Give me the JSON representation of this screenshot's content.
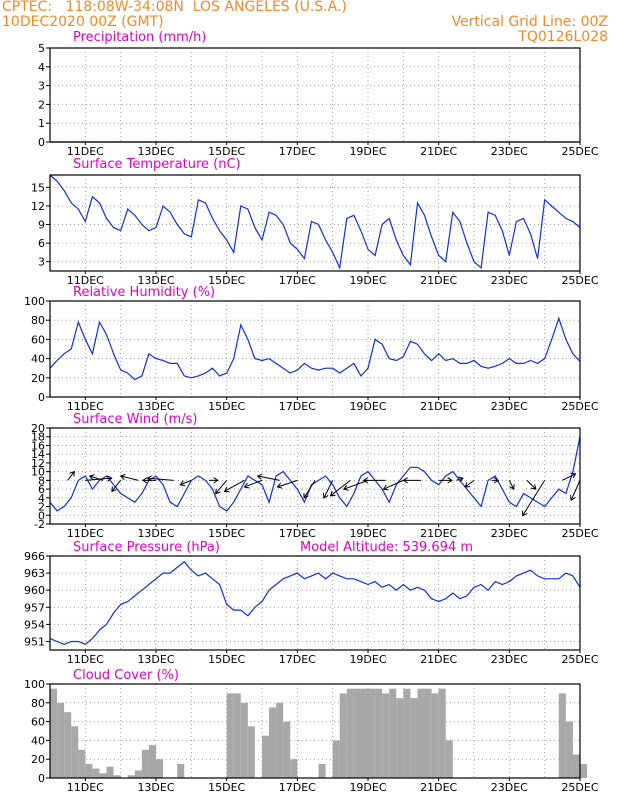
{
  "header": {
    "line1_left": "CPTEC:   118:08W-34:08N  LOS ANGELES (U.S.A.)",
    "line2_left": "10DEC2020 00Z (GMT)",
    "line1_right": "Vertical Grid Line: 00Z",
    "line2_right": "TQ0126L028"
  },
  "colors": {
    "header": "#f08a28",
    "panel_title": "#e000c8",
    "line": "#1030e0",
    "bar": "#a8a8a8",
    "arrow": "#000000"
  },
  "chart_data": [
    {
      "type": "line",
      "title": "Precipitation (mm/h)",
      "ylim": [
        0,
        5
      ],
      "yticks": [
        0,
        1,
        2,
        3,
        4,
        5
      ],
      "xticks": [
        "11DEC",
        "13DEC",
        "15DEC",
        "17DEC",
        "19DEC",
        "21DEC",
        "23DEC",
        "25DEC"
      ],
      "series": [
        {
          "x": [
            0,
            15
          ],
          "values": [
            0,
            0
          ]
        }
      ]
    },
    {
      "type": "line",
      "title": "Surface Temperature (nC)",
      "ylim": [
        1.5,
        17
      ],
      "yticks": [
        3,
        6,
        9,
        12,
        15
      ],
      "xticks": [
        "11DEC",
        "13DEC",
        "15DEC",
        "17DEC",
        "19DEC",
        "21DEC",
        "23DEC",
        "25DEC"
      ],
      "series": [
        {
          "x": [
            0,
            0.2,
            0.4,
            0.6,
            0.8,
            1.0,
            1.2,
            1.4,
            1.6,
            1.8,
            2.0,
            2.2,
            2.4,
            2.6,
            2.8,
            3.0,
            3.2,
            3.4,
            3.6,
            3.8,
            4.0,
            4.2,
            4.4,
            4.6,
            4.8,
            5.0,
            5.2,
            5.4,
            5.6,
            5.8,
            6.0,
            6.2,
            6.4,
            6.6,
            6.8,
            7.0,
            7.2,
            7.4,
            7.6,
            7.8,
            8.0,
            8.2,
            8.4,
            8.6,
            8.8,
            9.0,
            9.2,
            9.4,
            9.6,
            9.8,
            10.0,
            10.2,
            10.4,
            10.6,
            10.8,
            11.0,
            11.2,
            11.4,
            11.6,
            11.8,
            12.0,
            12.2,
            12.4,
            12.6,
            12.8,
            13.0,
            13.2,
            13.4,
            13.6,
            13.8,
            14.0,
            14.2,
            14.4,
            14.6,
            14.8,
            15.0
          ],
          "values": [
            17,
            16,
            14.5,
            12.5,
            11.5,
            9.5,
            13.5,
            12.5,
            10,
            8.5,
            8,
            11.5,
            10.5,
            9,
            8,
            8.5,
            12,
            11,
            9,
            7.5,
            7,
            13,
            12.5,
            10,
            8,
            6.5,
            4.5,
            12,
            11.5,
            8.5,
            6.5,
            11,
            10.5,
            9,
            6,
            5,
            3.5,
            9.5,
            9,
            6.5,
            4.5,
            2,
            10,
            10.5,
            8,
            5,
            4,
            9,
            10,
            6.5,
            4,
            2.5,
            12.5,
            10.5,
            7,
            4,
            3,
            11,
            9.5,
            6,
            3,
            2,
            11,
            10.5,
            8,
            4,
            9.5,
            10,
            7.5,
            3.5,
            13,
            12,
            11,
            10,
            9.5,
            8.5
          ]
        }
      ]
    },
    {
      "type": "line",
      "title": "Relative Humidity (%)",
      "ylim": [
        0,
        100
      ],
      "yticks": [
        0,
        20,
        40,
        60,
        80,
        100
      ],
      "xticks": [
        "11DEC",
        "13DEC",
        "15DEC",
        "17DEC",
        "19DEC",
        "21DEC",
        "23DEC",
        "25DEC"
      ],
      "series": [
        {
          "x": [
            0,
            0.2,
            0.4,
            0.6,
            0.8,
            1.0,
            1.2,
            1.4,
            1.6,
            1.8,
            2.0,
            2.2,
            2.4,
            2.6,
            2.8,
            3.0,
            3.2,
            3.4,
            3.6,
            3.8,
            4.0,
            4.2,
            4.4,
            4.6,
            4.8,
            5.0,
            5.2,
            5.4,
            5.6,
            5.8,
            6.0,
            6.2,
            6.4,
            6.6,
            6.8,
            7.0,
            7.2,
            7.4,
            7.6,
            7.8,
            8.0,
            8.2,
            8.4,
            8.6,
            8.8,
            9.0,
            9.2,
            9.4,
            9.6,
            9.8,
            10.0,
            10.2,
            10.4,
            10.6,
            10.8,
            11.0,
            11.2,
            11.4,
            11.6,
            11.8,
            12.0,
            12.2,
            12.4,
            12.6,
            12.8,
            13.0,
            13.2,
            13.4,
            13.6,
            13.8,
            14.0,
            14.2,
            14.4,
            14.6,
            14.8,
            15.0
          ],
          "values": [
            30,
            38,
            45,
            50,
            78,
            60,
            45,
            78,
            65,
            45,
            28,
            25,
            18,
            22,
            45,
            40,
            38,
            35,
            35,
            22,
            20,
            22,
            25,
            30,
            22,
            25,
            40,
            75,
            60,
            40,
            38,
            40,
            35,
            30,
            25,
            28,
            35,
            30,
            28,
            30,
            30,
            25,
            30,
            35,
            22,
            30,
            60,
            55,
            40,
            38,
            42,
            58,
            55,
            45,
            38,
            45,
            38,
            40,
            35,
            35,
            38,
            32,
            30,
            32,
            35,
            40,
            35,
            35,
            38,
            35,
            40,
            60,
            82,
            60,
            45,
            37
          ]
        }
      ]
    },
    {
      "type": "line",
      "title": "Surface Wind (m/s)",
      "ylim": [
        -2,
        20
      ],
      "yticks": [
        -2,
        0,
        2,
        4,
        6,
        8,
        10,
        12,
        14,
        16,
        18,
        20
      ],
      "xticks": [
        "11DEC",
        "13DEC",
        "15DEC",
        "17DEC",
        "19DEC",
        "21DEC",
        "23DEC",
        "25DEC"
      ],
      "series": [
        {
          "x": [
            0,
            0.2,
            0.4,
            0.6,
            0.8,
            1.0,
            1.2,
            1.4,
            1.6,
            1.8,
            2.0,
            2.2,
            2.4,
            2.6,
            2.8,
            3.0,
            3.2,
            3.4,
            3.6,
            3.8,
            4.0,
            4.2,
            4.4,
            4.6,
            4.8,
            5.0,
            5.2,
            5.4,
            5.6,
            5.8,
            6.0,
            6.2,
            6.4,
            6.6,
            6.8,
            7.0,
            7.2,
            7.4,
            7.6,
            7.8,
            8.0,
            8.2,
            8.4,
            8.6,
            8.8,
            9.0,
            9.2,
            9.4,
            9.6,
            9.8,
            10.0,
            10.2,
            10.4,
            10.6,
            10.8,
            11.0,
            11.2,
            11.4,
            11.6,
            11.8,
            12.0,
            12.2,
            12.4,
            12.6,
            12.8,
            13.0,
            13.2,
            13.4,
            13.6,
            13.8,
            14.0,
            14.2,
            14.4,
            14.6,
            14.8,
            15.0
          ],
          "values": [
            3,
            1,
            2,
            4,
            8,
            9,
            6,
            8,
            9,
            7,
            5,
            4,
            3,
            5,
            8,
            9,
            7,
            3,
            2,
            5,
            8,
            9,
            8,
            6,
            2,
            1,
            3,
            6,
            9,
            8,
            7,
            3,
            9,
            10,
            8,
            6,
            3,
            7,
            8,
            9,
            7,
            4,
            2,
            5,
            9,
            10,
            8,
            6,
            3,
            7,
            9,
            11,
            11,
            10,
            8,
            7,
            9,
            10,
            8,
            6,
            4,
            2,
            8,
            9,
            6,
            3,
            2,
            5,
            4,
            3,
            2,
            4,
            6,
            5,
            10,
            18
          ]
        }
      ],
      "wind_vectors": {
        "x": [
          0.5,
          1.0,
          1.5,
          2.0,
          2.5,
          3.0,
          3.5,
          4.0,
          4.5,
          5.0,
          5.5,
          6.0,
          6.5,
          7.0,
          7.5,
          8.0,
          8.5,
          9.0,
          9.5,
          10.0,
          10.5,
          11.0,
          11.5,
          12.0,
          12.5,
          13.0,
          13.5,
          14.0,
          14.5,
          15.0
        ],
        "u": [
          0.3,
          1.2,
          -0.6,
          -0.4,
          -0.8,
          -0.6,
          -1.2,
          -0.5,
          0.4,
          -0.5,
          -0.9,
          -0.8,
          -1.0,
          -0.9,
          -0.5,
          -0.4,
          -0.9,
          -1.1,
          -1.0,
          -0.9,
          -0.8,
          0.6,
          0.3,
          -0.4,
          0.3,
          0.2,
          0.4,
          -1.0,
          0.6,
          -0.4
        ],
        "v": [
          0.4,
          0.1,
          0.2,
          -0.5,
          0.2,
          0,
          0.1,
          -0.2,
          0,
          -0.6,
          -0.5,
          -0.3,
          0.2,
          -0.3,
          -0.8,
          -0.8,
          -0.7,
          -0.4,
          0,
          -0.4,
          0,
          0,
          0.1,
          -0.3,
          0,
          -0.4,
          -0.4,
          -1.6,
          0.3,
          -0.9
        ]
      }
    },
    {
      "type": "line",
      "title": "Surface Pressure (hPa)",
      "annotation": "Model Altitude: 539.694 m",
      "ylim": [
        949.5,
        966
      ],
      "yticks": [
        951,
        954,
        957,
        960,
        963,
        966
      ],
      "xticks": [
        "11DEC",
        "13DEC",
        "15DEC",
        "17DEC",
        "19DEC",
        "21DEC",
        "23DEC",
        "25DEC"
      ],
      "series": [
        {
          "x": [
            0,
            0.2,
            0.4,
            0.6,
            0.8,
            1.0,
            1.2,
            1.4,
            1.6,
            1.8,
            2.0,
            2.2,
            2.4,
            2.6,
            2.8,
            3.0,
            3.2,
            3.4,
            3.6,
            3.8,
            4.0,
            4.2,
            4.4,
            4.6,
            4.8,
            5.0,
            5.2,
            5.4,
            5.6,
            5.8,
            6.0,
            6.2,
            6.4,
            6.6,
            6.8,
            7.0,
            7.2,
            7.4,
            7.6,
            7.8,
            8.0,
            8.2,
            8.4,
            8.6,
            8.8,
            9.0,
            9.2,
            9.4,
            9.6,
            9.8,
            10.0,
            10.2,
            10.4,
            10.6,
            10.8,
            11.0,
            11.2,
            11.4,
            11.6,
            11.8,
            12.0,
            12.2,
            12.4,
            12.6,
            12.8,
            13.0,
            13.2,
            13.4,
            13.6,
            13.8,
            14.0,
            14.2,
            14.4,
            14.6,
            14.8,
            15.0
          ],
          "values": [
            951.5,
            951,
            950.5,
            951,
            951,
            950.5,
            951.5,
            953,
            954,
            956,
            957.5,
            958,
            959,
            960,
            961,
            962,
            963,
            963,
            964,
            965,
            963.5,
            962.5,
            963,
            962,
            961,
            957.5,
            956.5,
            956.5,
            955.5,
            957,
            958,
            960,
            961,
            962,
            962.5,
            963,
            962,
            962.5,
            963,
            962,
            963,
            962.5,
            962,
            962,
            961.5,
            961,
            961.5,
            960.5,
            961,
            960,
            961,
            960,
            960.5,
            960,
            958.5,
            958,
            958.5,
            959.5,
            958.5,
            959,
            960.5,
            961,
            960,
            961.5,
            961,
            961.5,
            962.5,
            963,
            963.5,
            962.5,
            962,
            962,
            962,
            963,
            962.5,
            960.5
          ]
        }
      ]
    },
    {
      "type": "bar",
      "title": "Cloud Cover (%)",
      "ylim": [
        0,
        100
      ],
      "yticks": [
        0,
        20,
        40,
        60,
        80,
        100
      ],
      "xticks": [
        "11DEC",
        "13DEC",
        "15DEC",
        "17DEC",
        "19DEC",
        "21DEC",
        "23DEC",
        "25DEC"
      ],
      "series": [
        {
          "x": [
            0,
            0.2,
            0.4,
            0.6,
            0.8,
            1.0,
            1.2,
            1.4,
            1.6,
            1.8,
            2.0,
            2.2,
            2.4,
            2.6,
            2.8,
            3.0,
            3.2,
            3.4,
            3.6,
            3.8,
            4.0,
            4.2,
            4.4,
            4.6,
            4.8,
            5.0,
            5.2,
            5.4,
            5.6,
            5.8,
            6.0,
            6.2,
            6.4,
            6.6,
            6.8,
            7.0,
            7.2,
            7.4,
            7.6,
            7.8,
            8.0,
            8.2,
            8.4,
            8.6,
            8.8,
            9.0,
            9.2,
            9.4,
            9.6,
            9.8,
            10.0,
            10.2,
            10.4,
            10.6,
            10.8,
            11.0,
            11.2,
            11.4,
            11.6,
            11.8,
            12.0,
            12.2,
            12.4,
            12.6,
            12.8,
            13.0,
            13.2,
            13.4,
            13.6,
            13.8,
            14.0,
            14.2,
            14.4,
            14.6,
            14.8,
            15.0
          ],
          "values": [
            95,
            80,
            70,
            55,
            30,
            15,
            10,
            5,
            12,
            3,
            0,
            3,
            8,
            30,
            35,
            20,
            0,
            0,
            15,
            0,
            0,
            0,
            0,
            0,
            0,
            90,
            90,
            80,
            55,
            0,
            45,
            75,
            80,
            60,
            20,
            0,
            0,
            0,
            15,
            0,
            40,
            90,
            95,
            95,
            95,
            95,
            95,
            90,
            95,
            85,
            95,
            85,
            95,
            95,
            90,
            95,
            40,
            0,
            0,
            0,
            0,
            0,
            0,
            0,
            0,
            0,
            0,
            0,
            0,
            0,
            0,
            0,
            90,
            60,
            25,
            15
          ]
        }
      ]
    }
  ]
}
